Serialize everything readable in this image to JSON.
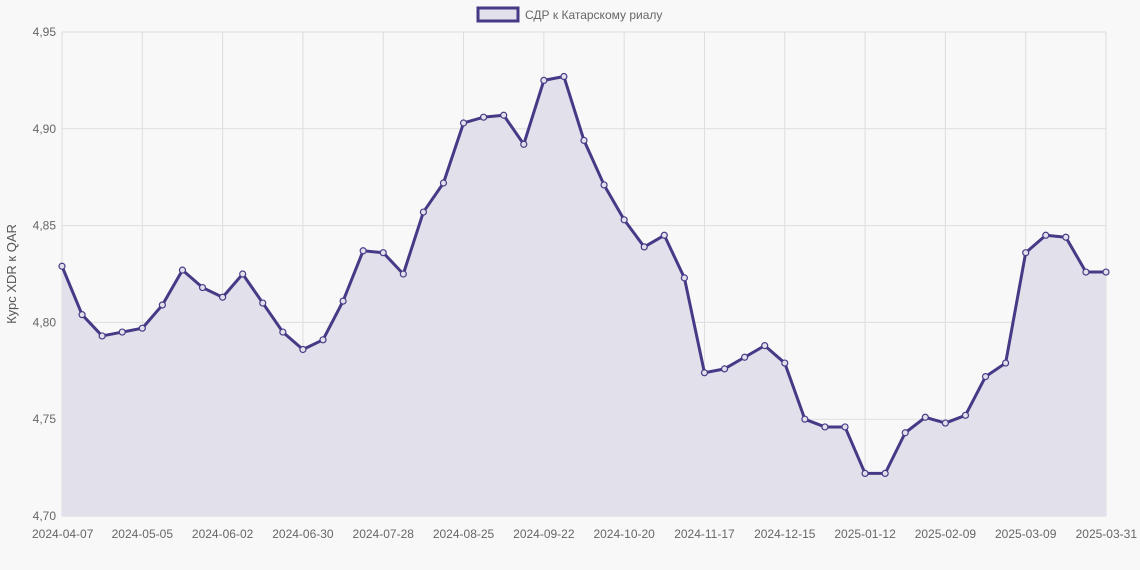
{
  "colors": {
    "line": "#463a87",
    "fill": "#e2e0ea",
    "grid": "#dddddd",
    "background": "#f8f8f8"
  },
  "chart_data": {
    "type": "area",
    "legend": {
      "label": "СДР к Катарскому риалу",
      "position": "top-center"
    },
    "ylabel": "Курс XDR к QAR",
    "xlabel": "",
    "ylim": [
      4.7,
      4.95
    ],
    "y_ticks": [
      "4,70",
      "4,75",
      "4,80",
      "4,85",
      "4,90",
      "4,95"
    ],
    "y_tick_values": [
      4.7,
      4.75,
      4.8,
      4.85,
      4.9,
      4.95
    ],
    "x_ticks": [
      "2024-04-07",
      "2024-05-05",
      "2024-06-02",
      "2024-06-30",
      "2024-07-28",
      "2024-08-25",
      "2024-09-22",
      "2024-10-20",
      "2024-11-17",
      "2024-12-15",
      "2025-01-12",
      "2025-02-09",
      "2025-03-09",
      "2025-03-31"
    ],
    "x_tick_indices": [
      0,
      4,
      8,
      12,
      16,
      20,
      24,
      28,
      32,
      36,
      40,
      44,
      48,
      52
    ],
    "grid": true,
    "series": [
      {
        "name": "СДР к Катарскому риалу",
        "x": [
          "2024-04-07",
          "2024-04-14",
          "2024-04-21",
          "2024-04-28",
          "2024-05-05",
          "2024-05-12",
          "2024-05-19",
          "2024-05-26",
          "2024-06-02",
          "2024-06-09",
          "2024-06-16",
          "2024-06-23",
          "2024-06-30",
          "2024-07-07",
          "2024-07-14",
          "2024-07-21",
          "2024-07-28",
          "2024-08-04",
          "2024-08-11",
          "2024-08-18",
          "2024-08-25",
          "2024-09-01",
          "2024-09-08",
          "2024-09-15",
          "2024-09-22",
          "2024-09-29",
          "2024-10-06",
          "2024-10-13",
          "2024-10-20",
          "2024-10-27",
          "2024-11-03",
          "2024-11-10",
          "2024-11-17",
          "2024-11-24",
          "2024-12-01",
          "2024-12-08",
          "2024-12-15",
          "2024-12-22",
          "2024-12-29",
          "2025-01-05",
          "2025-01-12",
          "2025-01-19",
          "2025-01-26",
          "2025-02-02",
          "2025-02-09",
          "2025-02-16",
          "2025-02-23",
          "2025-03-02",
          "2025-03-09",
          "2025-03-16",
          "2025-03-23",
          "2025-03-30",
          "2025-03-31"
        ],
        "values": [
          4.829,
          4.804,
          4.793,
          4.795,
          4.797,
          4.809,
          4.827,
          4.818,
          4.813,
          4.825,
          4.81,
          4.795,
          4.786,
          4.791,
          4.811,
          4.837,
          4.836,
          4.825,
          4.857,
          4.872,
          4.903,
          4.906,
          4.907,
          4.892,
          4.925,
          4.927,
          4.894,
          4.871,
          4.853,
          4.839,
          4.845,
          4.823,
          4.774,
          4.776,
          4.782,
          4.788,
          4.779,
          4.75,
          4.746,
          4.746,
          4.722,
          4.722,
          4.743,
          4.751,
          4.748,
          4.752,
          4.772,
          4.779,
          4.836,
          4.845,
          4.844,
          4.826,
          4.826
        ]
      }
    ]
  }
}
